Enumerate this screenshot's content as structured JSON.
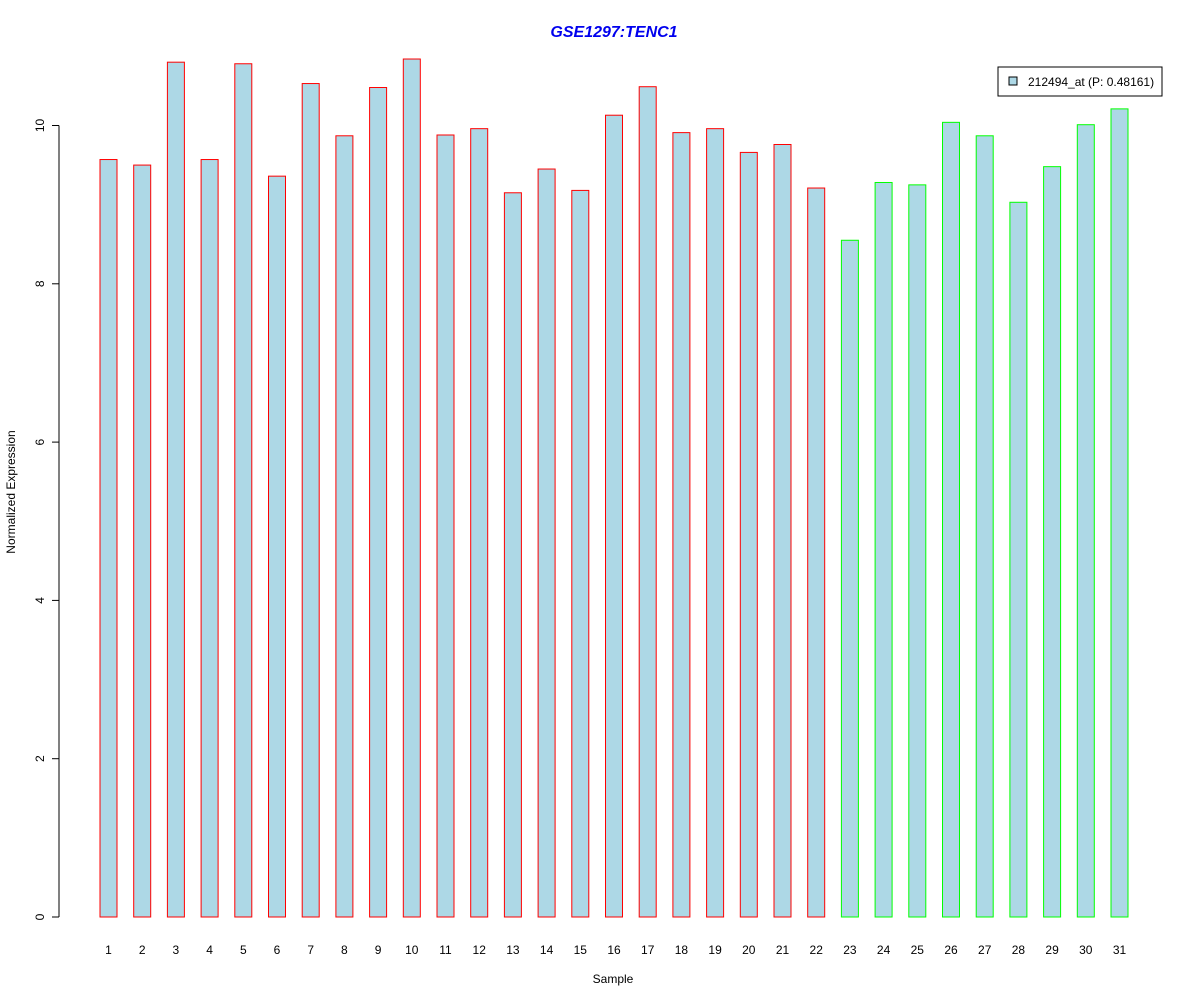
{
  "chart_data": {
    "type": "bar",
    "title": "GSE1297:TENC1",
    "xlabel": "Sample",
    "ylabel": "Normalized Expression",
    "categories": [
      "1",
      "2",
      "3",
      "4",
      "5",
      "6",
      "7",
      "8",
      "9",
      "10",
      "11",
      "12",
      "13",
      "14",
      "15",
      "16",
      "17",
      "18",
      "19",
      "20",
      "21",
      "22",
      "23",
      "24",
      "25",
      "26",
      "27",
      "28",
      "29",
      "30",
      "31"
    ],
    "series": [
      {
        "name": "212494_at (P: 0.48161)",
        "values": [
          9.57,
          9.5,
          10.8,
          9.57,
          10.78,
          9.36,
          10.53,
          9.87,
          10.48,
          10.84,
          9.88,
          9.96,
          9.15,
          9.45,
          9.18,
          10.13,
          10.49,
          9.91,
          9.96,
          9.66,
          9.76,
          9.21,
          8.55,
          9.28,
          9.25,
          10.04,
          9.87,
          9.03,
          9.48,
          10.01,
          10.21
        ]
      }
    ],
    "bar_border_colors": [
      "#ff0000",
      "#ff0000",
      "#ff0000",
      "#ff0000",
      "#ff0000",
      "#ff0000",
      "#ff0000",
      "#ff0000",
      "#ff0000",
      "#ff0000",
      "#ff0000",
      "#ff0000",
      "#ff0000",
      "#ff0000",
      "#ff0000",
      "#ff0000",
      "#ff0000",
      "#ff0000",
      "#ff0000",
      "#ff0000",
      "#ff0000",
      "#ff0000",
      "#00ff00",
      "#00ff00",
      "#00ff00",
      "#00ff00",
      "#00ff00",
      "#00ff00",
      "#00ff00",
      "#00ff00",
      "#00ff00"
    ],
    "yticks": [
      0,
      2,
      4,
      6,
      8,
      10
    ],
    "ylim": [
      0,
      10.84
    ],
    "grid": false,
    "legend_position": "top-right",
    "colors": {
      "bar_fill": "#add8e6",
      "title": "#0000ee",
      "axis": "#000000"
    }
  }
}
